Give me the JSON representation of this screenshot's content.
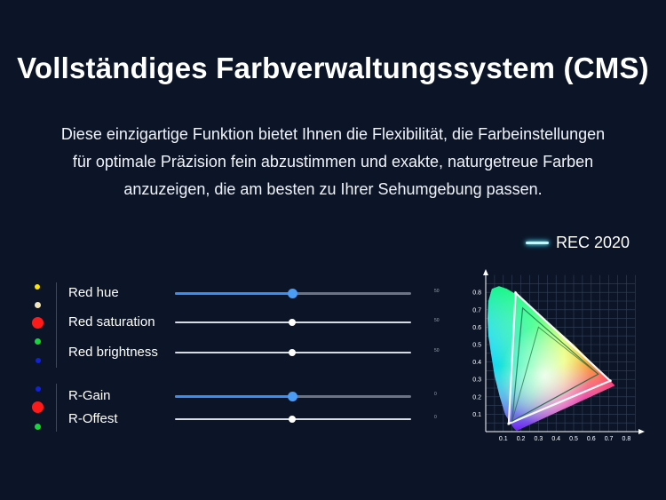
{
  "header": {
    "title": "Vollständiges Farbverwaltungssystem (CMS)",
    "description_lines": [
      "Diese einzigartige Funktion bietet Ihnen die Flexibilität, die Farbeinstellungen",
      "für optimale Präzision fein abzustimmen und exakte, naturgetreue Farben",
      "anzuzeigen, die am besten zu Ihrer Sehumgebung passen."
    ]
  },
  "legend": {
    "label": "REC 2020",
    "color": "#bff7ff"
  },
  "settings": {
    "group1": [
      {
        "label": "Red hue",
        "value": "50",
        "level": 0.5,
        "active": true
      },
      {
        "label": "Red saturation",
        "value": "50",
        "level": 0.5,
        "active": false
      },
      {
        "label": "Red brightness",
        "value": "50",
        "level": 0.5,
        "active": false
      }
    ],
    "group2": [
      {
        "label": "R-Gain",
        "value": "0",
        "level": 0.5,
        "active": true
      },
      {
        "label": "R-Offest",
        "value": "0",
        "level": 0.5,
        "active": false
      }
    ],
    "indicator_colors": [
      "#ffe600",
      "#f3e6b8",
      "#ff1a1a",
      "#17d43c",
      "#1322d8",
      "#1322d8",
      "#ff1a1a",
      "#17d43c"
    ]
  },
  "chart_data": {
    "type": "scatter",
    "title": "",
    "xlabel": "",
    "ylabel": "",
    "xlim": [
      0,
      0.8
    ],
    "ylim": [
      0,
      0.9
    ],
    "x_ticks": [
      "0.1",
      "0.2",
      "0.3",
      "0.4",
      "0.5",
      "0.6",
      "0.7",
      "0.8"
    ],
    "y_ticks": [
      "0.1",
      "0.2",
      "0.3",
      "0.4",
      "0.5",
      "0.6",
      "0.7",
      "0.8"
    ],
    "grid": true,
    "series": [
      {
        "name": "REC 2020",
        "points": [
          [
            0.708,
            0.292
          ],
          [
            0.17,
            0.797
          ],
          [
            0.131,
            0.046
          ]
        ]
      }
    ]
  }
}
